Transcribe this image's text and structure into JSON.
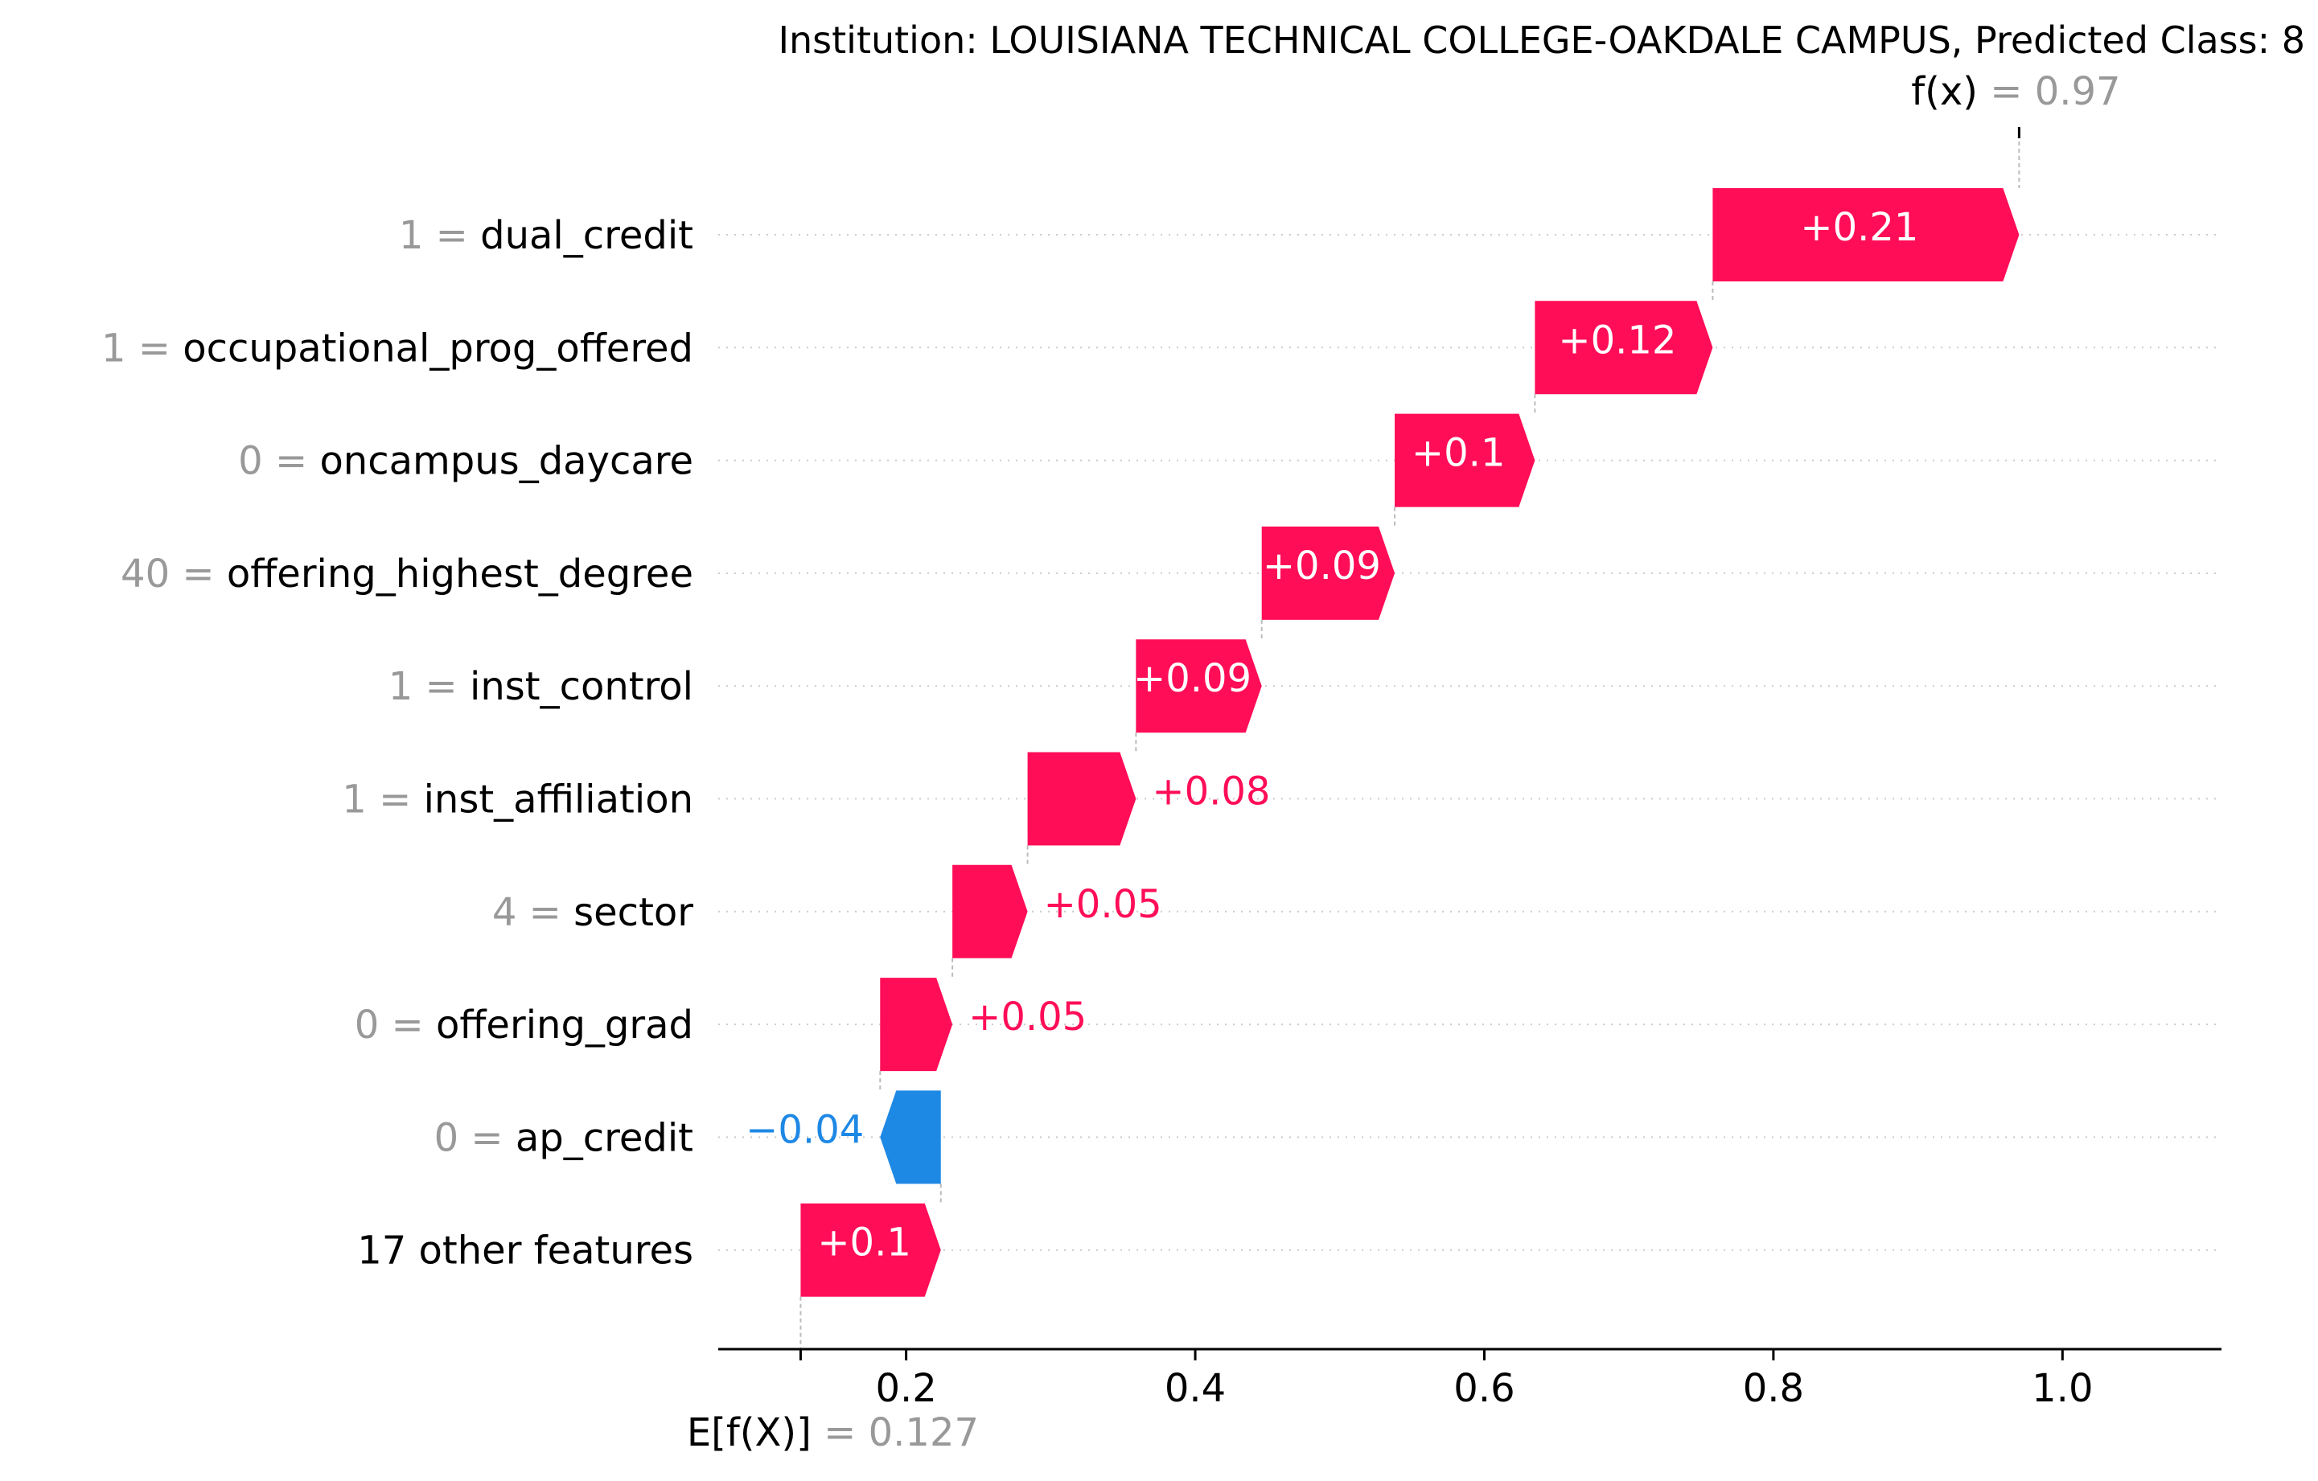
{
  "chart_data": {
    "type": "waterfall",
    "title": "Institution: LOUISIANA TECHNICAL COLLEGE-OAKDALE CAMPUS, Predicted Class: 8",
    "fx": {
      "label": "f(x)",
      "value_text": "= 0.97",
      "value": 0.97
    },
    "base": {
      "label": "E[f(X)]",
      "value_text": "= 0.127",
      "value": 0.127
    },
    "xlim": [
      0.07,
      1.11
    ],
    "xticks": [
      {
        "value": 0.2,
        "label": "0.2"
      },
      {
        "value": 0.4,
        "label": "0.4"
      },
      {
        "value": 0.6,
        "label": "0.6"
      },
      {
        "value": 0.8,
        "label": "0.8"
      },
      {
        "value": 1.0,
        "label": "1.0"
      }
    ],
    "features": [
      {
        "value": "1 =",
        "name": "dual_credit",
        "contribution": 0.21,
        "label": "+0.21"
      },
      {
        "value": "1 =",
        "name": "occupational_prog_offered",
        "contribution": 0.12,
        "label": "+0.12"
      },
      {
        "value": "0 =",
        "name": "oncampus_daycare",
        "contribution": 0.1,
        "label": "+0.1"
      },
      {
        "value": "40 =",
        "name": "offering_highest_degree",
        "contribution": 0.09,
        "label": "+0.09"
      },
      {
        "value": "1 =",
        "name": "inst_control",
        "contribution": 0.09,
        "label": "+0.09"
      },
      {
        "value": "1 =",
        "name": "inst_affiliation",
        "contribution": 0.08,
        "label": "+0.08"
      },
      {
        "value": "4 =",
        "name": "sector",
        "contribution": 0.05,
        "label": "+0.05"
      },
      {
        "value": "0 =",
        "name": "offering_grad",
        "contribution": 0.05,
        "label": "+0.05"
      },
      {
        "value": "0 =",
        "name": "ap_credit",
        "contribution": -0.04,
        "label": "−0.04"
      },
      {
        "value": "",
        "name": "17 other features",
        "contribution": 0.1,
        "label": "+0.1"
      }
    ],
    "bar_ends": [
      0.97,
      0.758,
      0.635,
      0.538,
      0.446,
      0.359,
      0.284,
      0.232,
      0.182,
      0.224,
      0.127
    ],
    "colors": {
      "positive": "#ff0d57",
      "negative": "#1e88e5",
      "value_gray": "#999999",
      "text": "#000000",
      "guide": "#bbbbbb",
      "grid": "#cccccc"
    }
  }
}
